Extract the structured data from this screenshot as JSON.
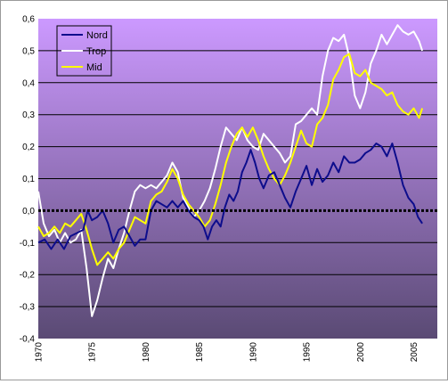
{
  "chart_data": {
    "type": "line",
    "title": "",
    "xlabel": "",
    "ylabel": "",
    "xlim": [
      1970,
      2007.2
    ],
    "ylim": [
      -0.4,
      0.6
    ],
    "x_ticks": [
      "1970",
      "1975",
      "1980",
      "1985",
      "1990",
      "1995",
      "2000",
      "2005"
    ],
    "y_ticks": [
      "0,6",
      "0,5",
      "0,4",
      "0,3",
      "0,2",
      "0,1",
      "0,0",
      "-0,1",
      "-0,2",
      "-0,3",
      "-0,4"
    ],
    "grid": true,
    "zero_line": "black dashed",
    "background": "vertical gradient violet to dark purple",
    "legend_placement": "top-left",
    "colors": {
      "Nord": "#0d0d8c",
      "Trop": "#ffffff",
      "Mid": "#ffff00",
      "gridline": "#000000",
      "bg_top": "#cc99ff",
      "bg_bottom": "#5a4a74"
    },
    "series": [
      {
        "name": "Nord",
        "points": [
          [
            1970,
            -0.1
          ],
          [
            1970.6,
            -0.09
          ],
          [
            1971.2,
            -0.12
          ],
          [
            1971.8,
            -0.09
          ],
          [
            1972.4,
            -0.12
          ],
          [
            1973,
            -0.08
          ],
          [
            1973.6,
            -0.07
          ],
          [
            1974.2,
            -0.06
          ],
          [
            1974.6,
            0.0
          ],
          [
            1975,
            -0.03
          ],
          [
            1975.5,
            -0.02
          ],
          [
            1976,
            0.0
          ],
          [
            1976.5,
            -0.04
          ],
          [
            1977,
            -0.1
          ],
          [
            1977.5,
            -0.06
          ],
          [
            1978,
            -0.05
          ],
          [
            1978.5,
            -0.08
          ],
          [
            1979,
            -0.11
          ],
          [
            1979.5,
            -0.09
          ],
          [
            1980,
            -0.09
          ],
          [
            1980.5,
            0.0
          ],
          [
            1981,
            0.03
          ],
          [
            1981.5,
            0.02
          ],
          [
            1982,
            0.01
          ],
          [
            1982.5,
            0.03
          ],
          [
            1983,
            0.01
          ],
          [
            1983.5,
            0.03
          ],
          [
            1984,
            0.0
          ],
          [
            1984.5,
            -0.02
          ],
          [
            1985,
            -0.03
          ],
          [
            1985.4,
            -0.05
          ],
          [
            1985.8,
            -0.09
          ],
          [
            1986.2,
            -0.05
          ],
          [
            1986.6,
            -0.03
          ],
          [
            1987,
            -0.05
          ],
          [
            1987.4,
            0.01
          ],
          [
            1987.8,
            0.05
          ],
          [
            1988.2,
            0.03
          ],
          [
            1988.6,
            0.06
          ],
          [
            1989,
            0.12
          ],
          [
            1989.4,
            0.15
          ],
          [
            1989.8,
            0.19
          ],
          [
            1990.2,
            0.15
          ],
          [
            1990.6,
            0.1
          ],
          [
            1991,
            0.07
          ],
          [
            1991.5,
            0.11
          ],
          [
            1992,
            0.12
          ],
          [
            1992.5,
            0.08
          ],
          [
            1993,
            0.04
          ],
          [
            1993.5,
            0.01
          ],
          [
            1994,
            0.06
          ],
          [
            1994.5,
            0.1
          ],
          [
            1995,
            0.14
          ],
          [
            1995.5,
            0.08
          ],
          [
            1996,
            0.13
          ],
          [
            1996.5,
            0.09
          ],
          [
            1997,
            0.11
          ],
          [
            1997.5,
            0.15
          ],
          [
            1998,
            0.12
          ],
          [
            1998.5,
            0.17
          ],
          [
            1999,
            0.15
          ],
          [
            1999.5,
            0.15
          ],
          [
            2000,
            0.16
          ],
          [
            2000.5,
            0.18
          ],
          [
            2001,
            0.19
          ],
          [
            2001.5,
            0.21
          ],
          [
            2002,
            0.2
          ],
          [
            2002.5,
            0.17
          ],
          [
            2003,
            0.21
          ],
          [
            2003.5,
            0.15
          ],
          [
            2004,
            0.08
          ],
          [
            2004.5,
            0.04
          ],
          [
            2005,
            0.02
          ],
          [
            2005.4,
            -0.02
          ],
          [
            2005.8,
            -0.04
          ]
        ]
      },
      {
        "name": "Trop",
        "points": [
          [
            1970,
            0.06
          ],
          [
            1970.5,
            -0.04
          ],
          [
            1971,
            -0.08
          ],
          [
            1971.5,
            -0.06
          ],
          [
            1972,
            -0.1
          ],
          [
            1972.5,
            -0.07
          ],
          [
            1973,
            -0.1
          ],
          [
            1973.5,
            -0.09
          ],
          [
            1974,
            -0.06
          ],
          [
            1974.5,
            -0.18
          ],
          [
            1975,
            -0.33
          ],
          [
            1975.5,
            -0.28
          ],
          [
            1976,
            -0.21
          ],
          [
            1976.5,
            -0.15
          ],
          [
            1977,
            -0.18
          ],
          [
            1977.5,
            -0.12
          ],
          [
            1978,
            -0.07
          ],
          [
            1978.5,
            0.0
          ],
          [
            1979,
            0.06
          ],
          [
            1979.5,
            0.08
          ],
          [
            1980,
            0.07
          ],
          [
            1980.5,
            0.08
          ],
          [
            1981,
            0.07
          ],
          [
            1981.5,
            0.09
          ],
          [
            1982,
            0.11
          ],
          [
            1982.5,
            0.15
          ],
          [
            1983,
            0.12
          ],
          [
            1983.5,
            0.04
          ],
          [
            1984,
            0.01
          ],
          [
            1984.5,
            -0.02
          ],
          [
            1985,
            0.0
          ],
          [
            1985.5,
            0.03
          ],
          [
            1986,
            0.07
          ],
          [
            1986.5,
            0.13
          ],
          [
            1987,
            0.2
          ],
          [
            1987.5,
            0.26
          ],
          [
            1988,
            0.24
          ],
          [
            1988.5,
            0.22
          ],
          [
            1989,
            0.26
          ],
          [
            1989.5,
            0.22
          ],
          [
            1990,
            0.2
          ],
          [
            1990.5,
            0.19
          ],
          [
            1991,
            0.24
          ],
          [
            1991.5,
            0.22
          ],
          [
            1992,
            0.2
          ],
          [
            1992.5,
            0.18
          ],
          [
            1993,
            0.15
          ],
          [
            1993.5,
            0.17
          ],
          [
            1994,
            0.27
          ],
          [
            1994.5,
            0.28
          ],
          [
            1995,
            0.3
          ],
          [
            1995.5,
            0.32
          ],
          [
            1996,
            0.3
          ],
          [
            1996.5,
            0.42
          ],
          [
            1997,
            0.5
          ],
          [
            1997.5,
            0.54
          ],
          [
            1998,
            0.53
          ],
          [
            1998.5,
            0.55
          ],
          [
            1999,
            0.48
          ],
          [
            1999.5,
            0.36
          ],
          [
            2000,
            0.32
          ],
          [
            2000.5,
            0.37
          ],
          [
            2001,
            0.46
          ],
          [
            2001.5,
            0.5
          ],
          [
            2002,
            0.55
          ],
          [
            2002.5,
            0.52
          ],
          [
            2003,
            0.55
          ],
          [
            2003.5,
            0.58
          ],
          [
            2004,
            0.56
          ],
          [
            2004.5,
            0.55
          ],
          [
            2005,
            0.56
          ],
          [
            2005.5,
            0.53
          ],
          [
            2005.8,
            0.5
          ]
        ]
      },
      {
        "name": "Mid",
        "points": [
          [
            1970,
            -0.05
          ],
          [
            1970.5,
            -0.08
          ],
          [
            1971,
            -0.07
          ],
          [
            1971.5,
            -0.05
          ],
          [
            1972,
            -0.07
          ],
          [
            1972.5,
            -0.04
          ],
          [
            1973,
            -0.05
          ],
          [
            1973.5,
            -0.03
          ],
          [
            1974,
            -0.01
          ],
          [
            1974.5,
            -0.06
          ],
          [
            1975,
            -0.12
          ],
          [
            1975.5,
            -0.17
          ],
          [
            1976,
            -0.15
          ],
          [
            1976.5,
            -0.13
          ],
          [
            1977,
            -0.15
          ],
          [
            1977.5,
            -0.12
          ],
          [
            1978,
            -0.1
          ],
          [
            1978.5,
            -0.06
          ],
          [
            1979,
            -0.02
          ],
          [
            1979.5,
            -0.03
          ],
          [
            1980,
            -0.04
          ],
          [
            1980.5,
            0.03
          ],
          [
            1981,
            0.05
          ],
          [
            1981.5,
            0.06
          ],
          [
            1982,
            0.09
          ],
          [
            1982.5,
            0.13
          ],
          [
            1983,
            0.1
          ],
          [
            1983.5,
            0.05
          ],
          [
            1984,
            0.02
          ],
          [
            1984.5,
            0.0
          ],
          [
            1985,
            -0.02
          ],
          [
            1985.5,
            -0.05
          ],
          [
            1986,
            -0.03
          ],
          [
            1986.5,
            0.02
          ],
          [
            1987,
            0.08
          ],
          [
            1987.5,
            0.15
          ],
          [
            1988,
            0.2
          ],
          [
            1988.5,
            0.24
          ],
          [
            1989,
            0.26
          ],
          [
            1989.5,
            0.23
          ],
          [
            1990,
            0.26
          ],
          [
            1990.5,
            0.22
          ],
          [
            1991,
            0.17
          ],
          [
            1991.5,
            0.13
          ],
          [
            1992,
            0.1
          ],
          [
            1992.5,
            0.08
          ],
          [
            1993,
            0.11
          ],
          [
            1993.5,
            0.15
          ],
          [
            1994,
            0.2
          ],
          [
            1994.5,
            0.25
          ],
          [
            1995,
            0.21
          ],
          [
            1995.5,
            0.2
          ],
          [
            1996,
            0.27
          ],
          [
            1996.5,
            0.29
          ],
          [
            1997,
            0.33
          ],
          [
            1997.5,
            0.41
          ],
          [
            1998,
            0.44
          ],
          [
            1998.5,
            0.48
          ],
          [
            1999,
            0.49
          ],
          [
            1999.5,
            0.43
          ],
          [
            2000,
            0.42
          ],
          [
            2000.5,
            0.44
          ],
          [
            2001,
            0.4
          ],
          [
            2001.5,
            0.39
          ],
          [
            2002,
            0.38
          ],
          [
            2002.5,
            0.36
          ],
          [
            2003,
            0.37
          ],
          [
            2003.5,
            0.33
          ],
          [
            2004,
            0.31
          ],
          [
            2004.5,
            0.3
          ],
          [
            2005,
            0.32
          ],
          [
            2005.5,
            0.29
          ],
          [
            2005.8,
            0.32
          ]
        ]
      }
    ]
  }
}
